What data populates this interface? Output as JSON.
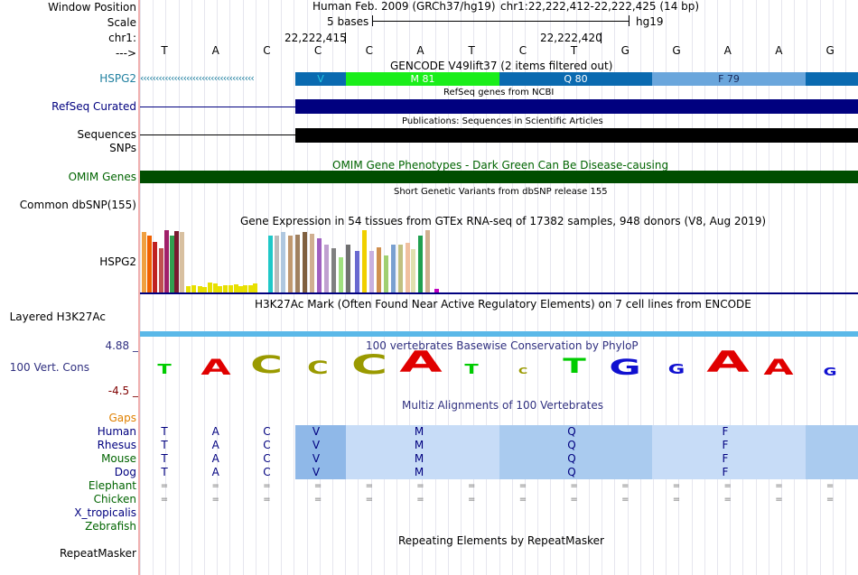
{
  "labels": {
    "window_position": "Window Position",
    "scale": "Scale",
    "chr": "chr1:",
    "arrow": "--->",
    "hspg2": "HSPG2",
    "refseq": "RefSeq Curated",
    "sequences": "Sequences",
    "snps": "SNPs",
    "omim": "OMIM Genes",
    "common_dbsnp": "Common dbSNP(155)",
    "gtex_gene": "HSPG2",
    "layered": "Layered H3K27Ac",
    "cons_max": "4.88 _",
    "vert_cons": "100 Vert. Cons",
    "cons_min": "-4.5 _",
    "gaps": "Gaps",
    "repeatmasker": "RepeatMasker"
  },
  "species": [
    {
      "name": "Human",
      "color": "#00007f"
    },
    {
      "name": "Rhesus",
      "color": "#00007f"
    },
    {
      "name": "Mouse",
      "color": "#006400"
    },
    {
      "name": "Dog",
      "color": "#00007f"
    },
    {
      "name": "Elephant",
      "color": "#006400"
    },
    {
      "name": "Chicken",
      "color": "#006400"
    },
    {
      "name": "X_tropicalis",
      "color": "#00007f"
    },
    {
      "name": "Zebrafish",
      "color": "#006400"
    }
  ],
  "header": {
    "assembly": "Human Feb. 2009 (GRCh37/hg19)",
    "position": "chr1:22,222,412-22,222,425 (14 bp)",
    "scale_label": "5 bases",
    "scale_db": "hg19",
    "coord1": "22,222,415",
    "coord2": "22,222,420"
  },
  "dna": [
    "T",
    "A",
    "C",
    "C",
    "C",
    "A",
    "T",
    "C",
    "T",
    "G",
    "G",
    "A",
    "A",
    "G"
  ],
  "gencode": {
    "title": "GENCODE V49lift37 (2 items filtered out)",
    "segments": [
      {
        "label": "V",
        "color": "#0a6ab0",
        "text_color": "#22c5e0"
      },
      {
        "label": "M 81",
        "color": "#1aee1a",
        "text_color": "#ffffff"
      },
      {
        "label": "Q 80",
        "color": "#0a6ab0",
        "text_color": "#ffffff"
      },
      {
        "label": "F 79",
        "color": "#6aa6dc",
        "text_color": "#1a2a5a"
      },
      {
        "label": "",
        "color": "#0a6ab0",
        "text_color": "#ffffff"
      }
    ]
  },
  "refseq_title": "RefSeq genes from NCBI",
  "publications_title": "Publications: Sequences in Scientific Articles",
  "omim_title": "OMIM Gene Phenotypes - Dark Green Can Be Disease-causing",
  "dbsnp_title": "Short Genetic Variants from dbSNP release 155",
  "gtex_title": "Gene Expression in 54 tissues from GTEx RNA-seq of 17382 samples, 948 donors (V8, Aug 2019)",
  "h3k27ac_title": "H3K27Ac Mark (Often Found Near Active Regulatory Elements) on 7 cell lines from ENCODE",
  "phylop_title": "100 vertebrates Basewise Conservation by PhyloP",
  "multiz_title": "Multiz Alignments of 100 Vertebrates",
  "repeat_title": "Repeating Elements by RepeatMasker",
  "conservation": [
    {
      "base": "T",
      "score": 0.2,
      "color": "#00cc00"
    },
    {
      "base": "A",
      "score": 0.6,
      "color": "#e00000"
    },
    {
      "base": "C",
      "score": 0.7,
      "color": "#9a9a00"
    },
    {
      "base": "C",
      "score": 0.4,
      "color": "#9a9a00"
    },
    {
      "base": "C",
      "score": 0.8,
      "color": "#9a9a00"
    },
    {
      "base": "A",
      "score": 0.9,
      "color": "#e00000"
    },
    {
      "base": "T",
      "score": 0.2,
      "color": "#00cc00"
    },
    {
      "base": "C",
      "score": 0.0,
      "color": "#9a9a00"
    },
    {
      "base": "T",
      "score": 0.5,
      "color": "#00cc00"
    },
    {
      "base": "G",
      "score": 0.6,
      "color": "#1010d0"
    },
    {
      "base": "G",
      "score": 0.2,
      "color": "#1010d0"
    },
    {
      "base": "A",
      "score": 0.9,
      "color": "#e00000"
    },
    {
      "base": "A",
      "score": 0.6,
      "color": "#e00000"
    },
    {
      "base": "G",
      "score": 0.1,
      "color": "#1010d0"
    }
  ],
  "gtex_bars": [
    {
      "v": 0.95,
      "c": "#f0a040"
    },
    {
      "v": 0.9,
      "c": "#f06000"
    },
    {
      "v": 0.8,
      "c": "#c02020"
    },
    {
      "v": 0.7,
      "c": "#c05050"
    },
    {
      "v": 0.98,
      "c": "#a0206a"
    },
    {
      "v": 0.9,
      "c": "#30a050"
    },
    {
      "v": 0.97,
      "c": "#7a1a30"
    },
    {
      "v": 0.95,
      "c": "#d8c0a0"
    },
    {
      "v": 0.1,
      "c": "#e8e000"
    },
    {
      "v": 0.12,
      "c": "#e8e000"
    },
    {
      "v": 0.1,
      "c": "#e8e000"
    },
    {
      "v": 0.08,
      "c": "#e8e000"
    },
    {
      "v": 0.15,
      "c": "#e8e000"
    },
    {
      "v": 0.14,
      "c": "#e8e000"
    },
    {
      "v": 0.1,
      "c": "#e8e000"
    },
    {
      "v": 0.12,
      "c": "#e8e000"
    },
    {
      "v": 0.11,
      "c": "#e8e000"
    },
    {
      "v": 0.13,
      "c": "#e8e000"
    },
    {
      "v": 0.1,
      "c": "#e8e000"
    },
    {
      "v": 0.12,
      "c": "#e8e000"
    },
    {
      "v": 0.11,
      "c": "#e8e000"
    },
    {
      "v": 0.14,
      "c": "#e8e000"
    },
    {
      "v": 0.9,
      "c": "#20c8c8"
    },
    {
      "v": 0.9,
      "c": "#bcbcbc"
    },
    {
      "v": 0.95,
      "c": "#b0c8e0"
    },
    {
      "v": 0.9,
      "c": "#c09870"
    },
    {
      "v": 0.92,
      "c": "#a08060"
    },
    {
      "v": 0.96,
      "c": "#806040"
    },
    {
      "v": 0.93,
      "c": "#d0b090"
    },
    {
      "v": 0.85,
      "c": "#a060c0"
    },
    {
      "v": 0.75,
      "c": "#c0a0d0"
    },
    {
      "v": 0.7,
      "c": "#808080"
    },
    {
      "v": 0.55,
      "c": "#a0e080"
    },
    {
      "v": 0.75,
      "c": "#707070"
    },
    {
      "v": 0.65,
      "c": "#6a6ad0"
    },
    {
      "v": 0.98,
      "c": "#f0d000"
    },
    {
      "v": 0.65,
      "c": "#c8b0e0"
    },
    {
      "v": 0.72,
      "c": "#d09050"
    },
    {
      "v": 0.58,
      "c": "#a0d070"
    },
    {
      "v": 0.75,
      "c": "#7aa0d0"
    },
    {
      "v": 0.75,
      "c": "#c0c080"
    },
    {
      "v": 0.78,
      "c": "#f0c0a0"
    },
    {
      "v": 0.68,
      "c": "#e0e0b0"
    },
    {
      "v": 0.9,
      "c": "#20a050"
    },
    {
      "v": 0.98,
      "c": "#d0b090"
    },
    {
      "v": 0.05,
      "c": "#c000c0"
    }
  ]
}
